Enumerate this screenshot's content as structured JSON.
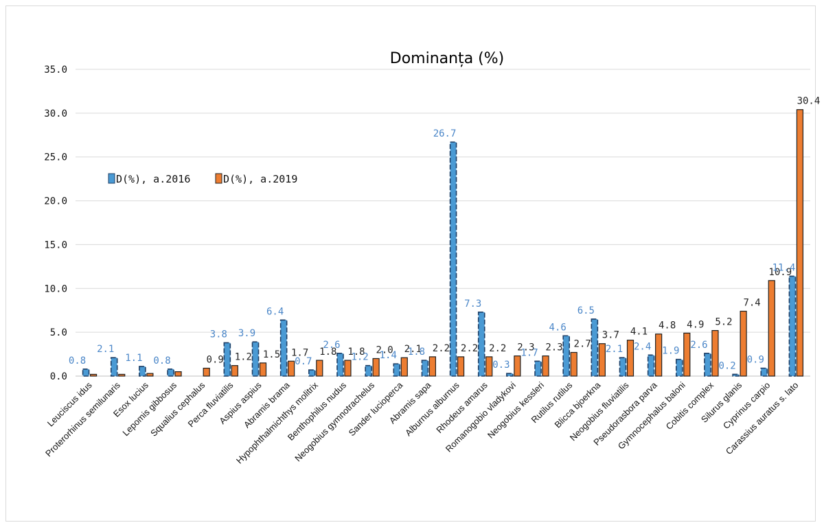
{
  "chart_data": {
    "type": "bar",
    "title": "Dominanța (%)",
    "xlabel": "",
    "ylabel": "",
    "ylim": [
      0,
      35
    ],
    "yticks": [
      "0.0",
      "5.0",
      "10.0",
      "15.0",
      "20.0",
      "25.0",
      "30.0",
      "35.0"
    ],
    "grid": true,
    "legend_position": "upper-left",
    "categories": [
      "Leuciscus idus",
      "Proterorhinus semilunaris",
      "Esox lucius",
      "Lepomis gibbosus",
      "Squalius cephalus",
      "Perca fluviatilis",
      "Aspius aspius",
      "Abramis brama",
      "Hypophthalmichthys molitrix",
      "Benthophilus nudus",
      "Neogobius gymnotrachelus",
      "Sander lucioperca",
      "Abramis sapa",
      "Alburnus alburnus",
      "Rhodeus amarus",
      "Romanogobio vladykovi",
      "Neogobius kessleri",
      "Rutilus rutilus",
      "Blicca bjoerkna",
      "Neogobius fluviatilis",
      "Pseudorasbora parva",
      "Gymnocephalus baloni",
      "Cobitis complex",
      "Silurus glanis",
      "Cyprinus carpio",
      "Carassius auratus s. lato"
    ],
    "series": [
      {
        "name": "D(%), a.2016",
        "color": "#4a9ad4",
        "label_color": "#4a86c8",
        "values": [
          0.8,
          2.1,
          1.1,
          0.8,
          0.0,
          3.8,
          3.9,
          6.4,
          0.7,
          2.6,
          1.2,
          1.4,
          1.8,
          26.7,
          7.3,
          0.3,
          1.7,
          4.6,
          6.5,
          2.1,
          2.4,
          1.9,
          2.6,
          0.2,
          0.9,
          11.4
        ],
        "labels": [
          "0.8",
          "2.1",
          "1.1",
          "0.8",
          "",
          "3.8",
          "3.9",
          "6.4",
          "0.7",
          "2.6",
          "1.2",
          "1.4",
          "1.8",
          "26.7",
          "7.3",
          "0.3",
          "1.7",
          "4.6",
          "6.5",
          "2.1",
          "2.4",
          "1.9",
          "2.6",
          "0.2",
          "0.9",
          "11.4"
        ]
      },
      {
        "name": "D(%), a.2019",
        "color": "#ed7d31",
        "label_color": "#222222",
        "values": [
          0.2,
          0.2,
          0.3,
          0.5,
          0.9,
          1.2,
          1.5,
          1.7,
          1.8,
          1.8,
          2.0,
          2.1,
          2.2,
          2.2,
          2.2,
          2.3,
          2.3,
          2.7,
          3.7,
          4.1,
          4.8,
          4.9,
          5.2,
          7.4,
          10.9,
          30.4
        ],
        "labels": [
          "",
          "",
          "",
          "",
          "0.9",
          "1.2",
          "1.5",
          "1.7",
          "1.8",
          "1.8",
          "2.0",
          "2.1",
          "2.2",
          "2.2",
          "2.2",
          "2.3",
          "2.3",
          "2.7",
          "3.7",
          "4.1",
          "4.8",
          "4.9",
          "5.2",
          "7.4",
          "10.9",
          "30.4"
        ]
      }
    ]
  }
}
